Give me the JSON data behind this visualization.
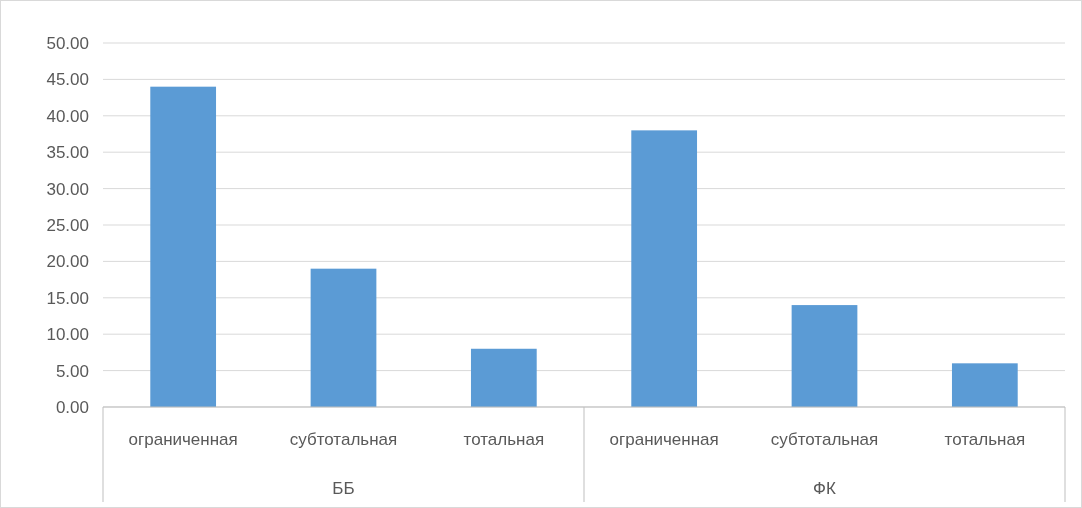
{
  "chart_data": {
    "type": "bar",
    "categories": [
      "ограниченная",
      "субтотальная",
      "тотальная",
      "ограниченная",
      "субтотальная",
      "тотальная"
    ],
    "values": [
      44,
      19,
      8,
      38,
      14,
      6
    ],
    "color": "#5b9bd5",
    "ylim": [
      0,
      50
    ],
    "yticks": [
      {
        "value": 0,
        "label": "0.00"
      },
      {
        "value": 5,
        "label": "5.00"
      },
      {
        "value": 10,
        "label": "10.00"
      },
      {
        "value": 15,
        "label": "15.00"
      },
      {
        "value": 20,
        "label": "20.00"
      },
      {
        "value": 25,
        "label": "25.00"
      },
      {
        "value": 30,
        "label": "30.00"
      },
      {
        "value": 35,
        "label": "35.00"
      },
      {
        "value": 40,
        "label": "40.00"
      },
      {
        "value": 45,
        "label": "45.00"
      },
      {
        "value": 50,
        "label": "50.00"
      }
    ],
    "grid": "y",
    "annotations": [
      "ББ",
      "ФК"
    ]
  }
}
